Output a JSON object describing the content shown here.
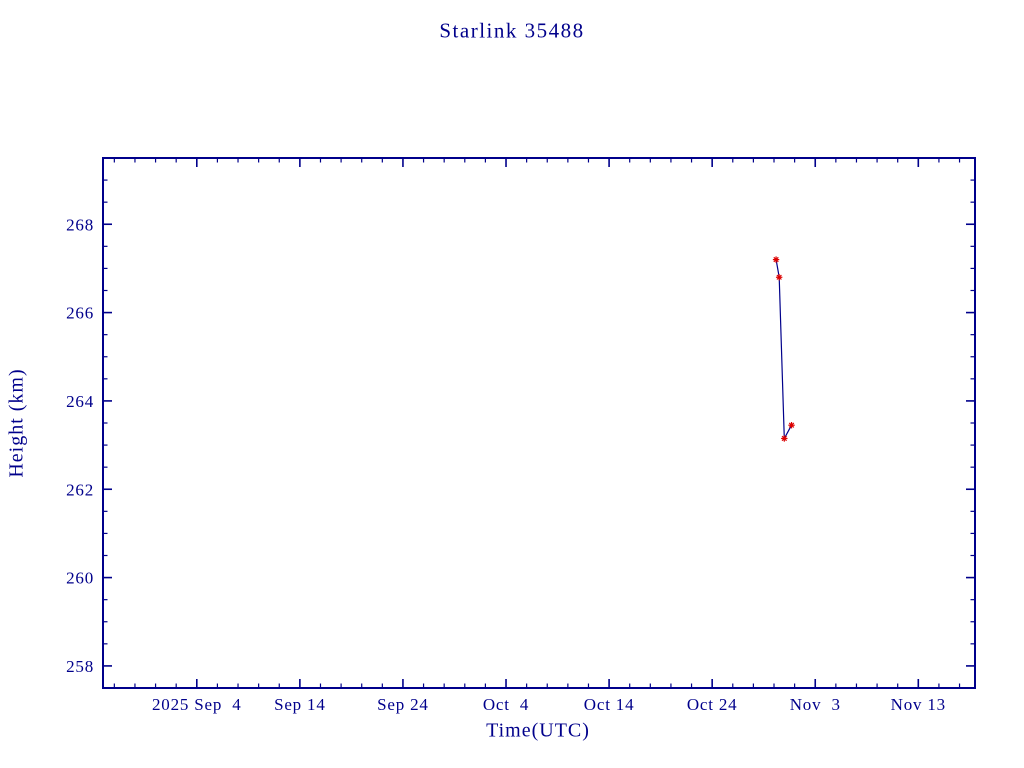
{
  "page": {
    "background": "#ffffff"
  },
  "chart_data": {
    "type": "line",
    "title": "Starlink 35488",
    "xlabel": "Time(UTC)",
    "ylabel": "Height (km)",
    "grid": false,
    "legend": false,
    "colors": {
      "axis": "#00008b",
      "text": "#00008b",
      "background": "#ffffff"
    },
    "x_axis": {
      "unit": "days since 2025 Sep 4",
      "range": [
        -9.1,
        75.5
      ],
      "minor_tick_step": 2,
      "major_ticks": [
        {
          "day": 0,
          "label": "2025 Sep  4"
        },
        {
          "day": 10,
          "label": "Sep 14"
        },
        {
          "day": 20,
          "label": "Sep 24"
        },
        {
          "day": 30,
          "label": "Oct  4"
        },
        {
          "day": 40,
          "label": "Oct 14"
        },
        {
          "day": 50,
          "label": "Oct 24"
        },
        {
          "day": 60,
          "label": "Nov  3"
        },
        {
          "day": 70,
          "label": "Nov 13"
        }
      ]
    },
    "y_axis": {
      "range": [
        257.5,
        269.5
      ],
      "minor_tick_step": 0.5,
      "major_ticks": [
        258,
        260,
        262,
        264,
        266,
        268
      ]
    },
    "series": [
      {
        "name": "Starlink 35488 height",
        "line_color": "#00008b",
        "marker": "red-asterisk",
        "marker_color": "#dd0000",
        "points": [
          {
            "day": 56.2,
            "date_approx": "2025 Oct 30",
            "height_km": 267.2
          },
          {
            "day": 56.5,
            "date_approx": "2025 Oct 30",
            "height_km": 266.8
          },
          {
            "day": 57.0,
            "date_approx": "2025 Oct 31",
            "height_km": 263.15
          },
          {
            "day": 57.7,
            "date_approx": "2025 Oct 31",
            "height_km": 263.45
          }
        ]
      }
    ]
  }
}
